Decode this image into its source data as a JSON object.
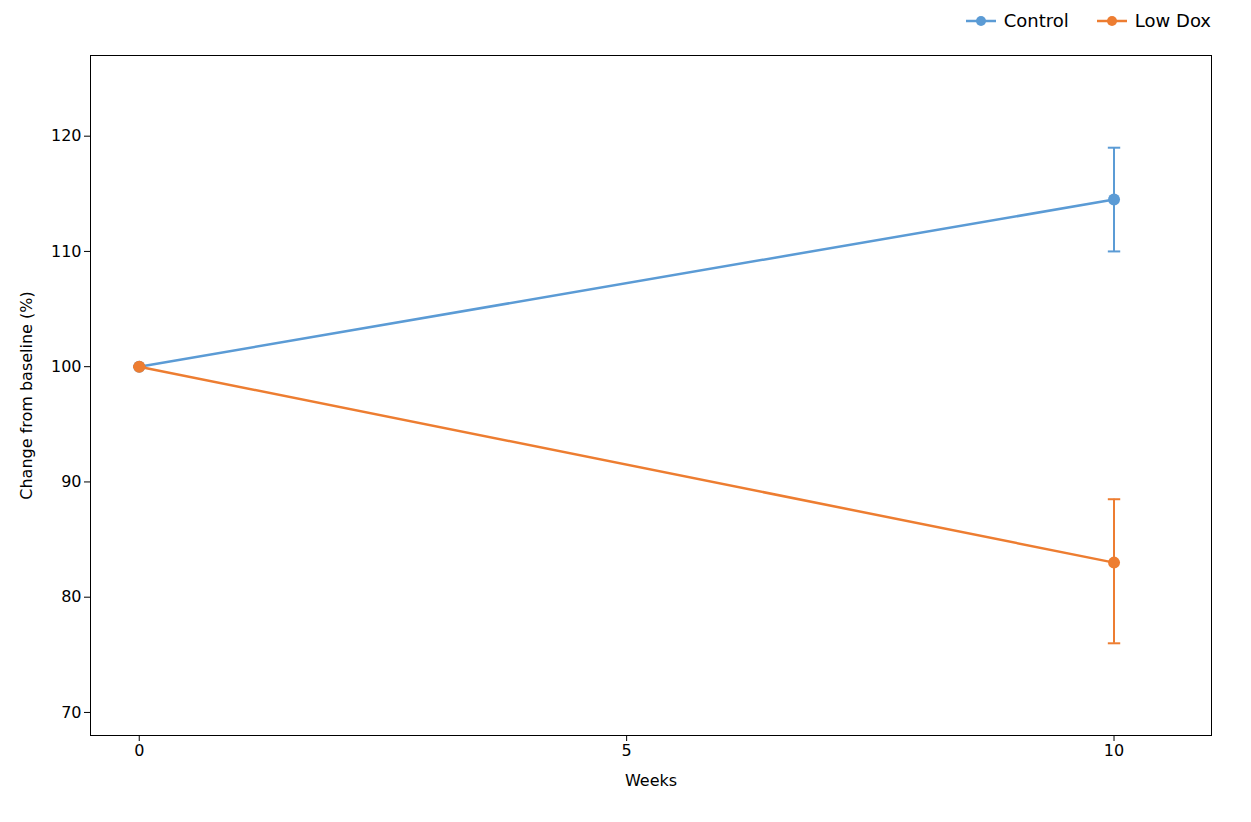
{
  "chart_data": {
    "type": "line",
    "xlabel": "Weeks",
    "ylabel": "Change from baseline (%)",
    "x": [
      0,
      10
    ],
    "series": [
      {
        "name": "Control",
        "color": "#5B9BD5",
        "values": [
          100,
          114.5
        ],
        "yerr_low": [
          0,
          4.5
        ],
        "yerr_high": [
          0,
          4.5
        ]
      },
      {
        "name": "Low Dox",
        "color": "#ED7D31",
        "values": [
          100,
          83.0
        ],
        "yerr_low": [
          0,
          7.0
        ],
        "yerr_high": [
          0,
          5.5
        ]
      }
    ],
    "xlim": [
      -0.5,
      11.0
    ],
    "ylim": [
      68,
      127
    ],
    "xticks": [
      0,
      5,
      10
    ],
    "yticks": [
      70,
      80,
      90,
      100,
      110,
      120
    ],
    "marker": "circle",
    "legend": "upper right",
    "grid": false
  }
}
